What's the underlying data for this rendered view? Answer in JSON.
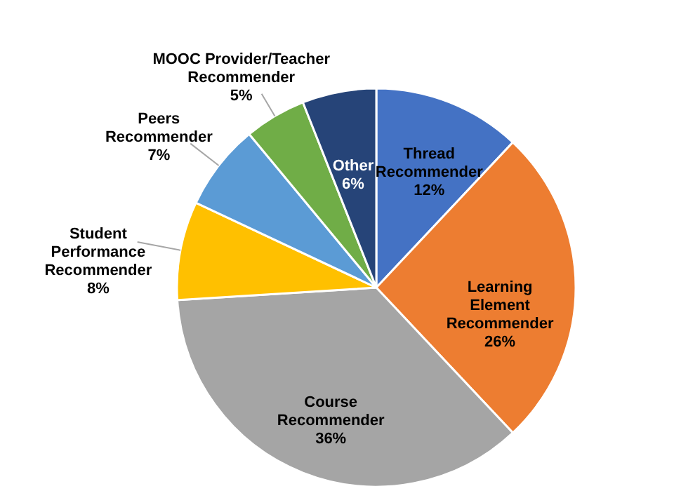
{
  "chart_data": {
    "type": "pie",
    "categories": [
      "Thread Recommender",
      "Learning Element Recommender",
      "Course Recommender",
      "Student Performance Recommender",
      "Peers Recommender",
      "MOOC Provider/Teacher Recommender",
      "Other"
    ],
    "values": [
      12,
      26,
      36,
      8,
      7,
      5,
      6
    ],
    "value_labels": [
      "12%",
      "26%",
      "36%",
      "8%",
      "7%",
      "5%",
      "6%"
    ],
    "colors": [
      "#4472c4",
      "#ed7d31",
      "#a5a5a5",
      "#ffc000",
      "#5b9bd5",
      "#70ad47",
      "#264478"
    ],
    "legend": false
  }
}
